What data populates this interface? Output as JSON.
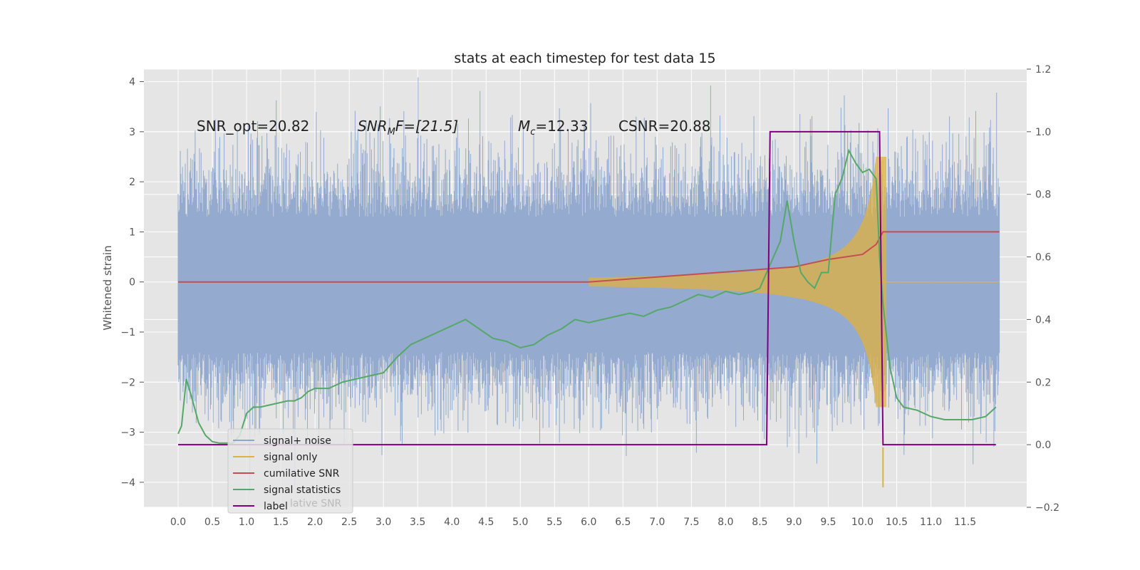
{
  "chart_data": {
    "type": "line",
    "title": "stats at each timestep for test data 15",
    "ylabel": "Whitened strain",
    "y2label": "",
    "xlim": [
      -0.5,
      12.4
    ],
    "ylim": [
      -4.5,
      4.25
    ],
    "y2lim": [
      -0.2,
      1.2
    ],
    "grid": true,
    "x_ticks": [
      "0.0",
      "0.5",
      "1.0",
      "1.5",
      "2.0",
      "2.5",
      "3.0",
      "3.5",
      "4.0",
      "4.5",
      "5.0",
      "5.5",
      "6.0",
      "6.5",
      "7.0",
      "7.5",
      "8.0",
      "8.5",
      "9.0",
      "9.5",
      "10.0",
      "10.5",
      "11.0",
      "11.5"
    ],
    "y_ticks": [
      "4",
      "3",
      "2",
      "1",
      "0",
      "−1",
      "−2",
      "−3",
      "−4"
    ],
    "y2_ticks": [
      "1.2",
      "1.0",
      "0.8",
      "0.6",
      "0.4",
      "0.2",
      "0.0",
      "−0.2"
    ],
    "annotations": {
      "snr_opt": "SNR_opt=20.82",
      "snr_mf_a": "SNR",
      "snr_mf_sub": "M",
      "snr_mf_b": "F=[21.5]",
      "mc_a": "M",
      "mc_sub": "c",
      "mc_b": "=12.33",
      "csnr": "CSNR=20.88"
    },
    "legend_position": "lower-left",
    "series": [
      {
        "name": "signal+ noise",
        "color": "#8fa6cc",
        "axis": "left"
      },
      {
        "name": "signal only",
        "color": "#e0b040",
        "axis": "left"
      },
      {
        "name": "cumilative SNR",
        "color": "#c44e52",
        "axis": "left"
      },
      {
        "name": "signal statistics",
        "color": "#55a868",
        "axis": "right"
      },
      {
        "name": "label",
        "color": "#800080",
        "axis": "right"
      }
    ],
    "legend_overflow_text": "lative SNR",
    "cumulative_snr": {
      "x": [
        0,
        6.0,
        6.5,
        7.0,
        7.5,
        8.0,
        8.5,
        9.0,
        9.5,
        10.0,
        10.2,
        10.3,
        12.0
      ],
      "y": [
        0,
        0,
        0.05,
        0.1,
        0.15,
        0.2,
        0.25,
        0.3,
        0.45,
        0.55,
        0.75,
        1.0,
        1.0
      ]
    },
    "signal_statistics": {
      "x": [
        0,
        0.05,
        0.12,
        0.2,
        0.3,
        0.4,
        0.5,
        0.6,
        0.8,
        0.9,
        1.0,
        1.1,
        1.2,
        1.4,
        1.6,
        1.7,
        1.8,
        1.9,
        2.0,
        2.2,
        2.4,
        2.6,
        2.8,
        3.0,
        3.2,
        3.4,
        3.6,
        3.8,
        4.0,
        4.2,
        4.4,
        4.6,
        4.8,
        5.0,
        5.2,
        5.4,
        5.6,
        5.8,
        6.0,
        6.2,
        6.4,
        6.6,
        6.8,
        7.0,
        7.2,
        7.4,
        7.6,
        7.8,
        8.0,
        8.2,
        8.4,
        8.5,
        8.6,
        8.7,
        8.8,
        8.9,
        9.0,
        9.1,
        9.2,
        9.3,
        9.4,
        9.5,
        9.6,
        9.7,
        9.8,
        9.9,
        10.0,
        10.1,
        10.2,
        10.25,
        10.3,
        10.4,
        10.5,
        10.6,
        10.8,
        11.0,
        11.2,
        11.4,
        11.6,
        11.8,
        11.95
      ],
      "y": [
        0.035,
        0.06,
        0.21,
        0.15,
        0.07,
        0.03,
        0.01,
        0.005,
        0.005,
        0.03,
        0.1,
        0.12,
        0.12,
        0.13,
        0.14,
        0.14,
        0.15,
        0.17,
        0.18,
        0.18,
        0.2,
        0.21,
        0.22,
        0.23,
        0.28,
        0.32,
        0.34,
        0.36,
        0.38,
        0.4,
        0.37,
        0.34,
        0.33,
        0.31,
        0.32,
        0.35,
        0.37,
        0.4,
        0.39,
        0.4,
        0.41,
        0.42,
        0.41,
        0.43,
        0.44,
        0.46,
        0.48,
        0.47,
        0.49,
        0.48,
        0.49,
        0.5,
        0.55,
        0.6,
        0.65,
        0.78,
        0.65,
        0.55,
        0.52,
        0.5,
        0.55,
        0.55,
        0.8,
        0.85,
        0.94,
        0.9,
        0.87,
        0.88,
        0.85,
        0.6,
        0.45,
        0.25,
        0.15,
        0.12,
        0.11,
        0.09,
        0.08,
        0.08,
        0.08,
        0.09,
        0.12
      ]
    },
    "label": {
      "x": [
        0,
        8.6,
        8.65,
        10.25,
        10.3,
        11.95
      ],
      "y": [
        0,
        0,
        1.0,
        1.0,
        0,
        0
      ]
    }
  }
}
